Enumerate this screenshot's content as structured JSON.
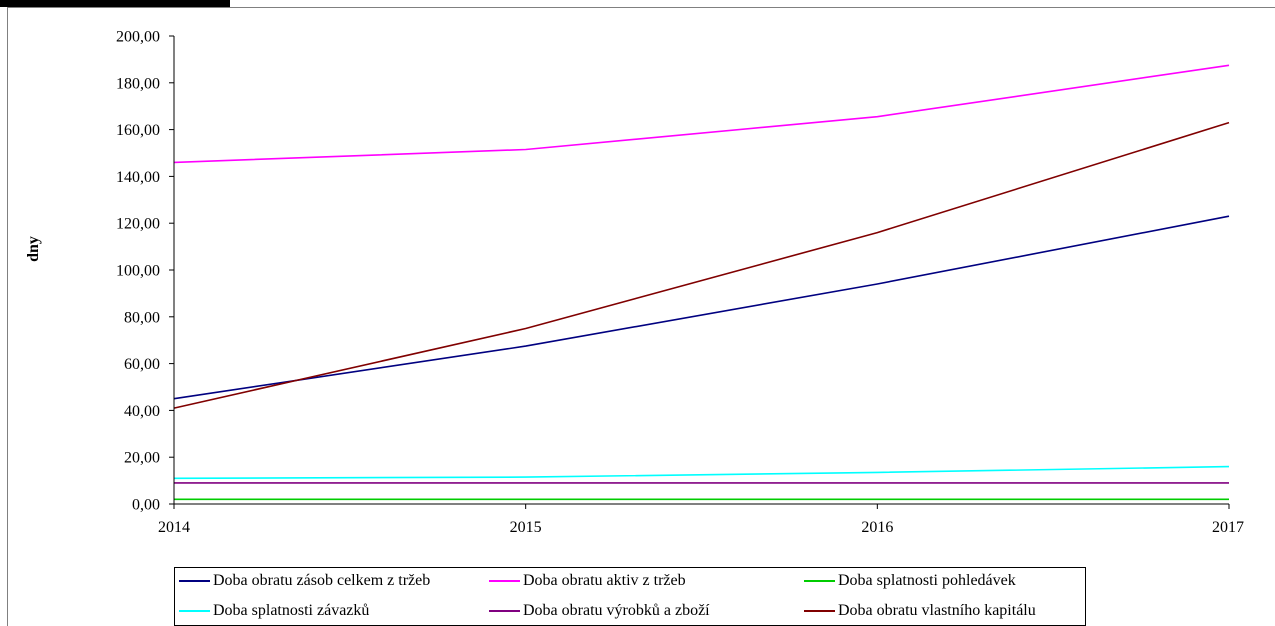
{
  "chart_data": {
    "type": "line",
    "title": "",
    "xlabel": "",
    "ylabel": "dny",
    "x": [
      "2014",
      "2015",
      "2016",
      "2017"
    ],
    "ylim": [
      0,
      200
    ],
    "yticks": [
      "0,00",
      "20,00",
      "40,00",
      "60,00",
      "80,00",
      "100,00",
      "120,00",
      "140,00",
      "160,00",
      "180,00",
      "200,00"
    ],
    "grid": false,
    "legend_position": "bottom",
    "series": [
      {
        "name": "Doba obratu zásob celkem z tržeb",
        "color": "#000080",
        "values": [
          45.0,
          67.5,
          94.0,
          123.0
        ]
      },
      {
        "name": "Doba obratu aktiv z tržeb",
        "color": "#FF00FF",
        "values": [
          146.0,
          151.5,
          165.5,
          187.5
        ]
      },
      {
        "name": "Doba splatnosti pohledávek",
        "color": "#00CC00",
        "values": [
          2.0,
          2.0,
          2.0,
          2.0
        ]
      },
      {
        "name": "Doba splatnosti závazků",
        "color": "#00FFFF",
        "values": [
          11.0,
          11.5,
          13.5,
          16.0
        ]
      },
      {
        "name": "Doba obratu výrobků a zboží",
        "color": "#800080",
        "values": [
          9.0,
          9.0,
          9.0,
          9.0
        ]
      },
      {
        "name": "Doba obratu vlastního kapitálu",
        "color": "#800000",
        "values": [
          41.0,
          75.0,
          116.0,
          163.0
        ]
      }
    ]
  }
}
